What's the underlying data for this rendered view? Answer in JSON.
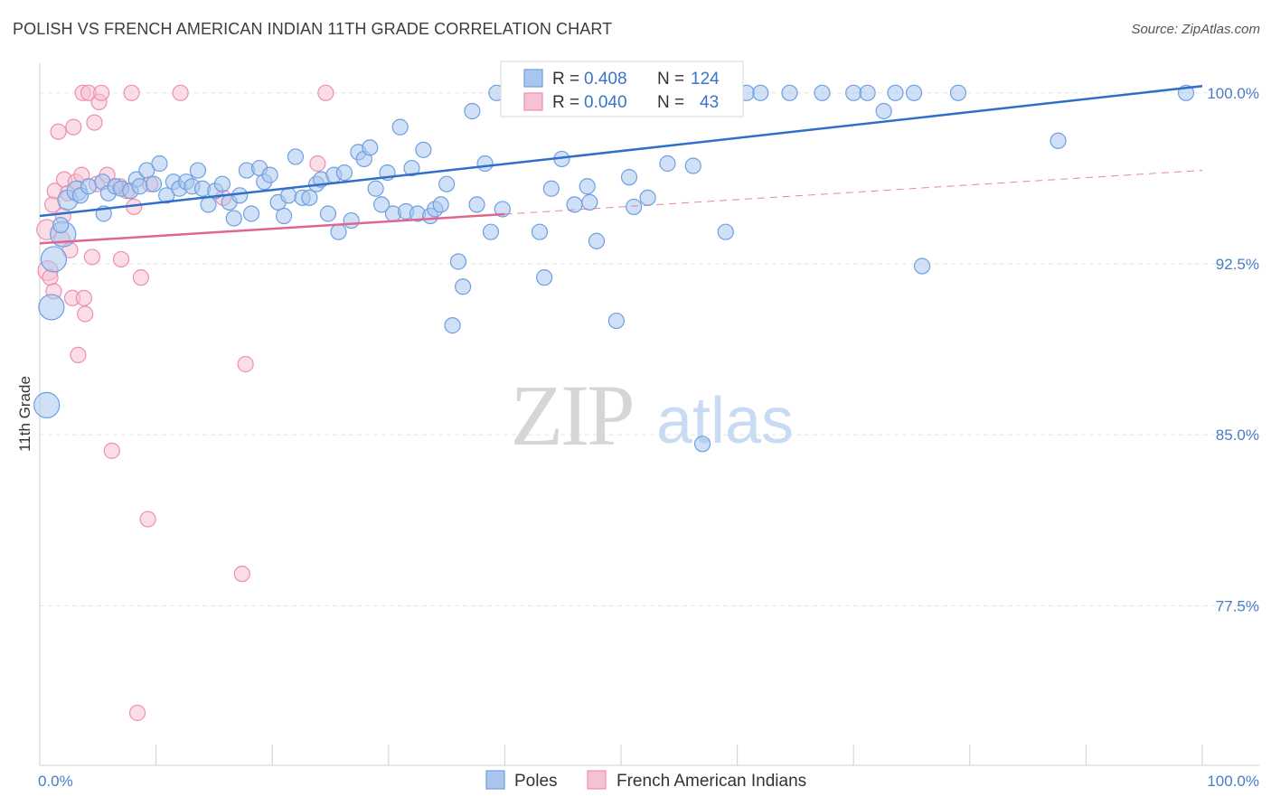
{
  "title": "POLISH VS FRENCH AMERICAN INDIAN 11TH GRADE CORRELATION CHART",
  "source": "Source: ZipAtlas.com",
  "watermark": {
    "zip": "ZIP",
    "atlas": "atlas"
  },
  "colors": {
    "poles": "#6f9fe0",
    "poles_fill": "#a9c6ef",
    "poles_line": "#2f6fc9",
    "french": "#ee8fb0",
    "french_fill": "#f6c1d4",
    "french_line": "#e0668f",
    "axis_label": "#4a7cc7",
    "grid": "#e3e3e3"
  },
  "legend": {
    "rows": [
      {
        "r_label": "R = ",
        "r_value": "0.408",
        "n_label": "N = ",
        "n_value": "124"
      },
      {
        "r_label": "R = ",
        "r_value": "0.040",
        "n_label": "N = ",
        "n_value": "43"
      }
    ]
  },
  "bottom_legend": [
    "Poles",
    "French American Indians"
  ],
  "chart_data": {
    "type": "scatter",
    "title": "POLISH VS FRENCH AMERICAN INDIAN 11TH GRADE CORRELATION CHART",
    "xlabel": "",
    "ylabel": "11th Grade",
    "xlim": [
      0,
      100
    ],
    "ylim": [
      70.5,
      101.3
    ],
    "x_tick_labels": [
      "0.0%",
      "100.0%"
    ],
    "y_ticks": [
      100,
      92.5,
      85,
      77.5
    ],
    "y_tick_labels": [
      "100.0%",
      "92.5%",
      "85.0%",
      "77.5%"
    ],
    "grid": true,
    "series": [
      {
        "name": "Poles",
        "R": 0.408,
        "N": 124,
        "trend": {
          "x": [
            0,
            100
          ],
          "y": [
            94.6,
            100.3
          ],
          "dashed_from": null
        },
        "points": [
          [
            1.0,
            90.6,
            3
          ],
          [
            0.6,
            86.3,
            3
          ],
          [
            1.2,
            92.7,
            3
          ],
          [
            2.0,
            93.8,
            3
          ],
          [
            1.8,
            94.2,
            1
          ],
          [
            2.4,
            95.3,
            2
          ],
          [
            3.2,
            95.7,
            2
          ],
          [
            3.5,
            95.5,
            1
          ],
          [
            4.2,
            95.9,
            1
          ],
          [
            5.4,
            96.1,
            1
          ],
          [
            5.9,
            95.6,
            1
          ],
          [
            5.5,
            94.7,
            1
          ],
          [
            6.5,
            95.9,
            1
          ],
          [
            7.0,
            95.8,
            1
          ],
          [
            7.8,
            95.7,
            1
          ],
          [
            8.3,
            96.2,
            1
          ],
          [
            8.6,
            95.9,
            1
          ],
          [
            9.2,
            96.6,
            1
          ],
          [
            9.8,
            96.0,
            1
          ],
          [
            10.3,
            96.9,
            1
          ],
          [
            10.9,
            95.5,
            1
          ],
          [
            11.5,
            96.1,
            1
          ],
          [
            12.0,
            95.8,
            1
          ],
          [
            12.6,
            96.1,
            1
          ],
          [
            13.1,
            95.9,
            1
          ],
          [
            13.6,
            96.6,
            1
          ],
          [
            14.0,
            95.8,
            1
          ],
          [
            14.5,
            95.1,
            1
          ],
          [
            15.1,
            95.7,
            1
          ],
          [
            15.7,
            96.0,
            1
          ],
          [
            16.3,
            95.2,
            1
          ],
          [
            16.7,
            94.5,
            1
          ],
          [
            17.2,
            95.5,
            1
          ],
          [
            17.8,
            96.6,
            1
          ],
          [
            18.2,
            94.7,
            1
          ],
          [
            18.9,
            96.7,
            1
          ],
          [
            19.3,
            96.1,
            1
          ],
          [
            19.8,
            96.4,
            1
          ],
          [
            20.5,
            95.2,
            1
          ],
          [
            21.0,
            94.6,
            1
          ],
          [
            21.4,
            95.5,
            1
          ],
          [
            22.0,
            97.2,
            1
          ],
          [
            22.6,
            95.4,
            1
          ],
          [
            23.2,
            95.4,
            1
          ],
          [
            23.8,
            96.0,
            1
          ],
          [
            24.2,
            96.2,
            1
          ],
          [
            24.8,
            94.7,
            1
          ],
          [
            25.3,
            96.4,
            1
          ],
          [
            25.7,
            93.9,
            1
          ],
          [
            26.2,
            96.5,
            1
          ],
          [
            26.8,
            94.4,
            1
          ],
          [
            27.4,
            97.4,
            1
          ],
          [
            27.9,
            97.1,
            1
          ],
          [
            28.4,
            97.6,
            1
          ],
          [
            28.9,
            95.8,
            1
          ],
          [
            29.4,
            95.1,
            1
          ],
          [
            29.9,
            96.5,
            1
          ],
          [
            30.4,
            94.7,
            1
          ],
          [
            31.0,
            98.5,
            1
          ],
          [
            31.5,
            94.8,
            1
          ],
          [
            32.0,
            96.7,
            1
          ],
          [
            32.5,
            94.7,
            1
          ],
          [
            33.0,
            97.5,
            1
          ],
          [
            33.6,
            94.6,
            1
          ],
          [
            34.0,
            94.9,
            1
          ],
          [
            34.5,
            95.1,
            1
          ],
          [
            35.0,
            96.0,
            1
          ],
          [
            35.5,
            89.8,
            1
          ],
          [
            36.0,
            92.6,
            1
          ],
          [
            36.4,
            91.5,
            1
          ],
          [
            37.2,
            99.2,
            1
          ],
          [
            37.6,
            95.1,
            1
          ],
          [
            38.3,
            96.9,
            1
          ],
          [
            38.8,
            93.9,
            1
          ],
          [
            39.3,
            100.0,
            1
          ],
          [
            39.8,
            94.9,
            1
          ],
          [
            40.4,
            100.0,
            1
          ],
          [
            41.4,
            99.3,
            1
          ],
          [
            41.9,
            100.0,
            1
          ],
          [
            42.4,
            100.0,
            1
          ],
          [
            43.0,
            93.9,
            1
          ],
          [
            43.4,
            91.9,
            1
          ],
          [
            44.0,
            95.8,
            1
          ],
          [
            44.5,
            100.0,
            1
          ],
          [
            44.9,
            97.1,
            1
          ],
          [
            45.5,
            100.0,
            1
          ],
          [
            46.0,
            95.1,
            1
          ],
          [
            46.6,
            100.0,
            1
          ],
          [
            47.1,
            95.9,
            1
          ],
          [
            47.3,
            95.2,
            1
          ],
          [
            47.7,
            100.0,
            1
          ],
          [
            47.9,
            93.5,
            1
          ],
          [
            48.5,
            100.0,
            1
          ],
          [
            49.1,
            100.0,
            1
          ],
          [
            49.6,
            90.0,
            1
          ],
          [
            50.2,
            100.0,
            1
          ],
          [
            50.7,
            96.3,
            1
          ],
          [
            51.1,
            95.0,
            1
          ],
          [
            51.7,
            100.0,
            1
          ],
          [
            52.3,
            95.4,
            1
          ],
          [
            53.1,
            100.0,
            1
          ],
          [
            54.0,
            96.9,
            1
          ],
          [
            55.0,
            100.0,
            1
          ],
          [
            56.2,
            96.8,
            1
          ],
          [
            57.0,
            84.6,
            1
          ],
          [
            57.9,
            100.0,
            1
          ],
          [
            59.0,
            93.9,
            1
          ],
          [
            60.8,
            100.0,
            1
          ],
          [
            62.0,
            100.0,
            1
          ],
          [
            64.5,
            100.0,
            1
          ],
          [
            67.3,
            100.0,
            1
          ],
          [
            70.0,
            100.0,
            1
          ],
          [
            71.2,
            100.0,
            1
          ],
          [
            72.6,
            99.2,
            1
          ],
          [
            73.6,
            100.0,
            1
          ],
          [
            75.2,
            100.0,
            1
          ],
          [
            75.9,
            92.4,
            1
          ],
          [
            79.0,
            100.0,
            1
          ],
          [
            87.6,
            97.9,
            1
          ],
          [
            98.6,
            100.0,
            1
          ]
        ]
      },
      {
        "name": "French American Indians",
        "R": 0.04,
        "N": 43,
        "trend": {
          "x": [
            0,
            100
          ],
          "y": [
            93.4,
            96.6
          ],
          "dashed_from": 40
        },
        "points": [
          [
            0.6,
            94.0,
            2
          ],
          [
            0.7,
            92.2,
            2
          ],
          [
            0.9,
            91.9,
            1
          ],
          [
            1.1,
            95.1,
            1
          ],
          [
            1.2,
            91.3,
            1
          ],
          [
            1.3,
            95.7,
            1
          ],
          [
            1.6,
            98.3,
            1
          ],
          [
            1.9,
            93.6,
            1
          ],
          [
            2.0,
            94.6,
            1
          ],
          [
            2.1,
            96.2,
            1
          ],
          [
            2.4,
            95.6,
            1
          ],
          [
            2.6,
            93.1,
            1
          ],
          [
            2.8,
            91.0,
            1
          ],
          [
            2.9,
            98.5,
            1
          ],
          [
            3.1,
            96.1,
            1
          ],
          [
            3.3,
            88.5,
            1
          ],
          [
            3.6,
            96.4,
            1
          ],
          [
            3.7,
            100.0,
            1
          ],
          [
            3.8,
            91.0,
            1
          ],
          [
            3.9,
            90.3,
            1
          ],
          [
            4.2,
            100.0,
            1
          ],
          [
            4.5,
            92.8,
            1
          ],
          [
            4.7,
            98.7,
            1
          ],
          [
            4.9,
            96.0,
            1
          ],
          [
            5.1,
            99.6,
            1
          ],
          [
            5.3,
            100.0,
            1
          ],
          [
            5.8,
            96.4,
            1
          ],
          [
            6.2,
            84.3,
            1
          ],
          [
            6.9,
            95.9,
            1
          ],
          [
            7.0,
            92.7,
            1
          ],
          [
            7.5,
            95.7,
            1
          ],
          [
            7.9,
            100.0,
            1
          ],
          [
            8.1,
            95.0,
            1
          ],
          [
            8.4,
            72.8,
            1
          ],
          [
            8.7,
            91.9,
            1
          ],
          [
            9.3,
            81.3,
            1
          ],
          [
            9.5,
            96.0,
            1
          ],
          [
            12.1,
            100.0,
            1
          ],
          [
            15.8,
            95.4,
            1
          ],
          [
            17.4,
            78.9,
            1
          ],
          [
            17.7,
            88.1,
            1
          ],
          [
            23.9,
            96.9,
            1
          ],
          [
            24.6,
            100.0,
            1
          ]
        ]
      }
    ]
  }
}
